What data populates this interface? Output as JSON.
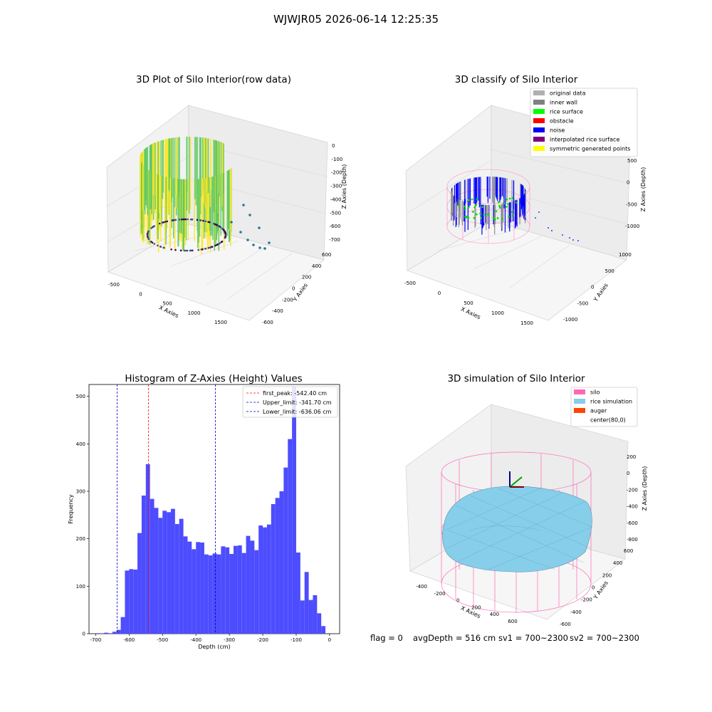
{
  "figure": {
    "suptitle": "WJWJR05 2026-06-14 12:25:35",
    "status": {
      "flag": "flag = 0",
      "avg_depth": "avgDepth = 516 cm",
      "sv1": "sv1 = 700~2300",
      "sv2": "sv2 = 700~2300"
    }
  },
  "chart_data": [
    {
      "type": "scatter",
      "projection": "3d",
      "title": "3D Plot of Silo Interior(row data)",
      "xlabel": "X Axies",
      "ylabel": "Y Axies",
      "zlabel": "Z Axies (Depth)",
      "x_ticks": [
        "-500",
        "0",
        "500",
        "1000",
        "1500"
      ],
      "y_ticks": [
        "600",
        "400",
        "200",
        "0",
        "-200",
        "-400",
        "-600"
      ],
      "z_ticks": [
        "0",
        "-100",
        "-200",
        "-300",
        "-400",
        "-500",
        "-600",
        "-700"
      ],
      "colormap": "viridis",
      "description_points": "silo wall points colored by depth"
    },
    {
      "type": "scatter",
      "projection": "3d",
      "title": "3D classify of Silo Interior",
      "xlabel": "X Axies",
      "ylabel": "Y Axies",
      "zlabel": "Z Axies (Depth)",
      "x_ticks": [
        "-500",
        "0",
        "500",
        "1000",
        "1500"
      ],
      "y_ticks": [
        "1000",
        "500",
        "0",
        "-500",
        "-1000"
      ],
      "z_ticks": [
        "500",
        "0",
        "-500",
        "-1000"
      ],
      "legend": {
        "position": "upper-right",
        "entries": [
          {
            "label": "original data",
            "color": "#b0b0b0"
          },
          {
            "label": "inner wall",
            "color": "#808080"
          },
          {
            "label": "rice surface",
            "color": "#00ff00"
          },
          {
            "label": "obstacle",
            "color": "#ff0000"
          },
          {
            "label": "noise",
            "color": "#0000ff"
          },
          {
            "label": "interpolated rice surface",
            "color": "#800080"
          },
          {
            "label": "symmetric generated points",
            "color": "#ffff00"
          }
        ]
      }
    },
    {
      "type": "bar",
      "title": "Histogram of Z-Axies (Height) Values",
      "xlabel": "Depth (cm)",
      "ylabel": "Frequency",
      "xlim": [
        -720,
        30
      ],
      "ylim": [
        0,
        525
      ],
      "x_ticks": [
        -700,
        -600,
        -500,
        -400,
        -300,
        -200,
        -100,
        0
      ],
      "y_ticks": [
        0,
        100,
        200,
        300,
        400,
        500
      ],
      "bar_color": "#4d4dff",
      "bin_width": 12.5,
      "bins": [
        [
          -700,
          1
        ],
        [
          -687.5,
          0
        ],
        [
          -675,
          2
        ],
        [
          -662.5,
          1
        ],
        [
          -650,
          4
        ],
        [
          -637.5,
          8
        ],
        [
          -625,
          35
        ],
        [
          -612.5,
          133
        ],
        [
          -600,
          136
        ],
        [
          -587.5,
          135
        ],
        [
          -575,
          212
        ],
        [
          -562.5,
          291
        ],
        [
          -550,
          357
        ],
        [
          -537.5,
          284
        ],
        [
          -525,
          265
        ],
        [
          -512.5,
          244
        ],
        [
          -500,
          259
        ],
        [
          -487.5,
          256
        ],
        [
          -475,
          263
        ],
        [
          -462.5,
          231
        ],
        [
          -450,
          242
        ],
        [
          -437.5,
          205
        ],
        [
          -425,
          194
        ],
        [
          -412.5,
          178
        ],
        [
          -400,
          193
        ],
        [
          -387.5,
          192
        ],
        [
          -375,
          167
        ],
        [
          -362.5,
          165
        ],
        [
          -350,
          169
        ],
        [
          -337.5,
          167
        ],
        [
          -325,
          184
        ],
        [
          -312.5,
          182
        ],
        [
          -300,
          168
        ],
        [
          -287.5,
          185
        ],
        [
          -275,
          186
        ],
        [
          -262.5,
          170
        ],
        [
          -250,
          206
        ],
        [
          -237.5,
          196
        ],
        [
          -225,
          176
        ],
        [
          -212.5,
          228
        ],
        [
          -200,
          224
        ],
        [
          -187.5,
          230
        ],
        [
          -175,
          273
        ],
        [
          -162.5,
          286
        ],
        [
          -150,
          300
        ],
        [
          -137.5,
          350
        ],
        [
          -125,
          410
        ],
        [
          -112.5,
          520
        ],
        [
          -100,
          171
        ],
        [
          -87.5,
          70
        ],
        [
          -75,
          130
        ],
        [
          -62.5,
          71
        ],
        [
          -50,
          81
        ],
        [
          -37.5,
          43
        ],
        [
          -25,
          16
        ]
      ],
      "lines": [
        {
          "label": "first_peak: -542.40 cm",
          "x": -542.4,
          "color": "#ff0000"
        },
        {
          "label": "Upper_limit: -341.70 cm",
          "x": -341.7,
          "color": "#0000cc"
        },
        {
          "label": "Lower_limit: -636.06 cm",
          "x": -636.06,
          "color": "#0000cc"
        }
      ],
      "legend": {
        "position": "upper-right"
      }
    },
    {
      "type": "surface",
      "projection": "3d",
      "title": "3D simulation of Silo Interior",
      "xlabel": "X Axies",
      "ylabel": "Y Axies",
      "zlabel": "Z Axies (Depth)",
      "x_ticks": [
        "-400",
        "-200",
        "0",
        "200",
        "400",
        "600"
      ],
      "y_ticks": [
        "600",
        "400",
        "200",
        "0",
        "-200",
        "-400",
        "-600"
      ],
      "z_ticks": [
        "200",
        "0",
        "-200",
        "-400",
        "-600",
        "-800"
      ],
      "legend": {
        "position": "upper-right",
        "entries": [
          {
            "label": "silo",
            "color": "#ff69b4"
          },
          {
            "label": "rice simulation",
            "color": "#87ceeb"
          },
          {
            "label": "auger",
            "color": "#ff4500"
          },
          {
            "label": "center(80,0)",
            "color": "#ffffff"
          }
        ]
      }
    }
  ]
}
